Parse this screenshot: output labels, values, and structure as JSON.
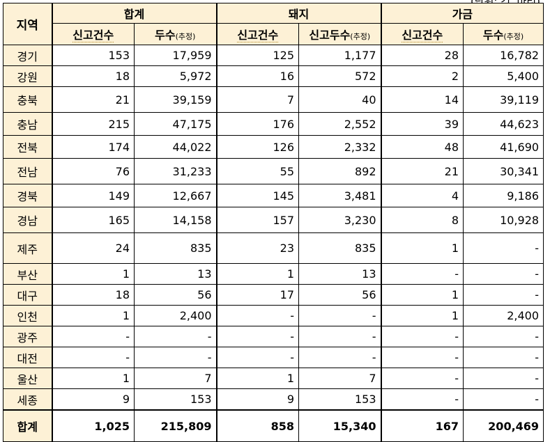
{
  "unit_note": "(단위: 건, 마리)",
  "headers": {
    "region": "지역",
    "groups": [
      "합계",
      "돼지",
      "가금"
    ],
    "sub": [
      {
        "label": "신고건수",
        "note": ""
      },
      {
        "label": "두수",
        "note": "(추정)"
      },
      {
        "label": "신고건수",
        "note": ""
      },
      {
        "label": "신고두수",
        "note": "(추정)"
      },
      {
        "label": "신고건수",
        "note": ""
      },
      {
        "label": "두수",
        "note": "(추정)"
      }
    ]
  },
  "rows": [
    {
      "region": "경기",
      "values": [
        "153",
        "17,959",
        "125",
        "1,177",
        "28",
        "16,782"
      ]
    },
    {
      "region": "강원",
      "values": [
        "18",
        "5,972",
        "16",
        "572",
        "2",
        "5,400"
      ]
    },
    {
      "region": "충북",
      "values": [
        "21",
        "39,159",
        "7",
        "40",
        "14",
        "39,119"
      ]
    },
    {
      "region": "충남",
      "values": [
        "215",
        "47,175",
        "176",
        "2,552",
        "39",
        "44,623"
      ]
    },
    {
      "region": "전북",
      "values": [
        "174",
        "44,022",
        "126",
        "2,332",
        "48",
        "41,690"
      ]
    },
    {
      "region": "전남",
      "values": [
        "76",
        "31,233",
        "55",
        "892",
        "21",
        "30,341"
      ]
    },
    {
      "region": "경북",
      "values": [
        "149",
        "12,667",
        "145",
        "3,481",
        "4",
        "9,186"
      ]
    },
    {
      "region": "경남",
      "values": [
        "165",
        "14,158",
        "157",
        "3,230",
        "8",
        "10,928"
      ]
    },
    {
      "region": "제주",
      "values": [
        "24",
        "835",
        "23",
        "835",
        "1",
        "-"
      ]
    },
    {
      "region": "부산",
      "values": [
        "1",
        "13",
        "1",
        "13",
        "-",
        "-"
      ]
    },
    {
      "region": "대구",
      "values": [
        "18",
        "56",
        "17",
        "56",
        "1",
        "-"
      ]
    },
    {
      "region": "인천",
      "values": [
        "1",
        "2,400",
        "-",
        "-",
        "1",
        "2,400"
      ]
    },
    {
      "region": "광주",
      "values": [
        "-",
        "-",
        "-",
        "-",
        "-",
        "-"
      ]
    },
    {
      "region": "대전",
      "values": [
        "-",
        "-",
        "-",
        "-",
        "-",
        "-"
      ]
    },
    {
      "region": "울산",
      "values": [
        "1",
        "7",
        "1",
        "7",
        "-",
        "-"
      ]
    },
    {
      "region": "세종",
      "values": [
        "9",
        "153",
        "9",
        "153",
        "-",
        "-"
      ]
    }
  ],
  "total": {
    "region": "합계",
    "values": [
      "1,025",
      "215,809",
      "858",
      "15,340",
      "167",
      "200,469"
    ]
  }
}
